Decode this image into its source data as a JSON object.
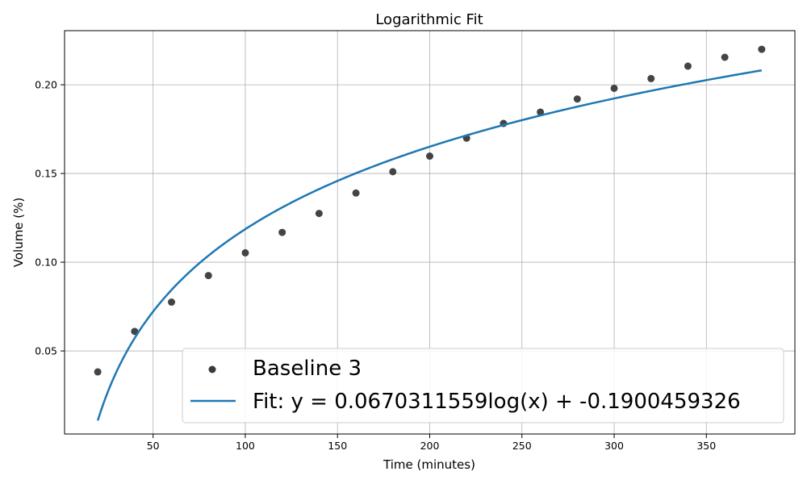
{
  "chart_data": {
    "type": "scatter",
    "title": "Logarithmic Fit",
    "xlabel": "Time (minutes)",
    "ylabel": "Volume (%)",
    "xlim": [
      2,
      398
    ],
    "ylim": [
      0.0032,
      0.2305
    ],
    "xticks": [
      50,
      100,
      150,
      200,
      250,
      300,
      350
    ],
    "yticks": [
      0.05,
      0.1,
      0.15,
      0.2
    ],
    "xtick_labels": [
      "50",
      "100",
      "150",
      "200",
      "250",
      "300",
      "350"
    ],
    "ytick_labels": [
      "0.05",
      "0.10",
      "0.15",
      "0.20"
    ],
    "grid": true,
    "legend_position": "lower-right",
    "series": [
      {
        "name": "Baseline 3",
        "kind": "scatter",
        "color": "#3a3a3a",
        "x": [
          20,
          40,
          60,
          80,
          100,
          120,
          140,
          160,
          180,
          200,
          220,
          240,
          260,
          280,
          300,
          320,
          340,
          360,
          380
        ],
        "y": [
          0.0382,
          0.061,
          0.0775,
          0.0925,
          0.1053,
          0.1168,
          0.1275,
          0.139,
          0.151,
          0.1598,
          0.1699,
          0.1782,
          0.1846,
          0.192,
          0.198,
          0.2035,
          0.2105,
          0.2155,
          0.22
        ]
      },
      {
        "name": "Fit: y = 0.0670311559log(x) + -0.1900459326",
        "kind": "line",
        "color": "#1f77b4",
        "a": 0.0670311559,
        "b": -0.1900459326,
        "x_start": 20,
        "x_end": 380
      }
    ]
  }
}
